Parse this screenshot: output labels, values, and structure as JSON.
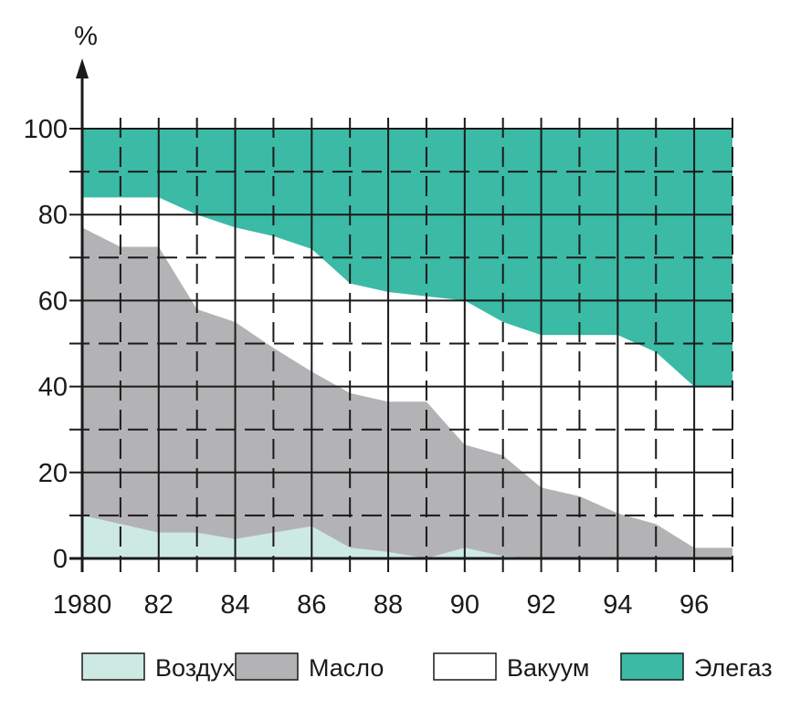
{
  "chart_data": {
    "type": "area",
    "stacked": true,
    "title": "",
    "xlabel": "",
    "ylabel": "%",
    "xlim": [
      1980,
      1997
    ],
    "ylim": [
      0,
      100
    ],
    "x_ticks": [
      1980,
      1982,
      1984,
      1986,
      1988,
      1990,
      1992,
      1994,
      1996
    ],
    "x_tick_labels": [
      "1980",
      "82",
      "84",
      "86",
      "88",
      "90",
      "92",
      "94",
      "96"
    ],
    "y_ticks": [
      0,
      20,
      40,
      60,
      80,
      100
    ],
    "y_tick_labels": [
      "0",
      "20",
      "40",
      "60",
      "80",
      "100"
    ],
    "grid": true,
    "legend_position": "bottom",
    "x": [
      1980,
      1981,
      1982,
      1983,
      1984,
      1985,
      1986,
      1987,
      1988,
      1989,
      1990,
      1991,
      1992,
      1993,
      1994,
      1995,
      1996,
      1997
    ],
    "series": [
      {
        "name": "Воздух",
        "color": "#cdeae2",
        "values": [
          10,
          8,
          6,
          6,
          4.5,
          6,
          7.5,
          2.5,
          1.5,
          0,
          2.5,
          0.5,
          0,
          0,
          0,
          0,
          0,
          0
        ]
      },
      {
        "name": "Масло",
        "color": "#b3b3b5",
        "values": [
          77,
          72.5,
          72.5,
          58,
          55,
          49,
          43.5,
          38.5,
          36.5,
          36.5,
          26.5,
          24,
          16.5,
          14.5,
          10.5,
          8,
          2.5,
          2.5
        ]
      },
      {
        "name": "Вакуум",
        "color": "#ffffff",
        "values": [
          84,
          84,
          84,
          80,
          77,
          75,
          72,
          64,
          62,
          61,
          60,
          55,
          52,
          52,
          52,
          48,
          40,
          40
        ]
      },
      {
        "name": "Элегаз",
        "color": "#3bbaa6",
        "values": [
          100,
          100,
          100,
          100,
          100,
          100,
          100,
          100,
          100,
          100,
          100,
          100,
          100,
          100,
          100,
          100,
          100,
          100
        ]
      }
    ],
    "value_note": "values are cumulative upper boundaries (%)"
  }
}
